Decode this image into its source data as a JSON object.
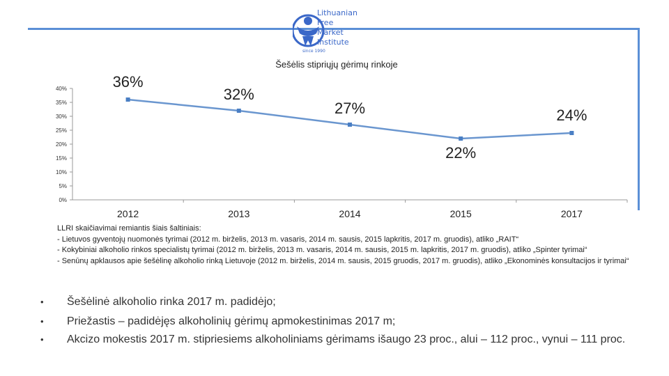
{
  "logo": {
    "lines": [
      "Lithuanian",
      "Free",
      "Market",
      "Institute"
    ],
    "year": "since 1990"
  },
  "colors": {
    "frame": "#5b8fd6",
    "line": "#6a96cf",
    "marker": "#4a7fc4",
    "logo": "#3b68c8"
  },
  "chart_data": {
    "type": "line",
    "title": "Šešėlis stipriųjų gėrimų rinkoje",
    "categories": [
      "2012",
      "2013",
      "2014",
      "2015",
      "2017"
    ],
    "values": [
      36,
      32,
      27,
      22,
      24
    ],
    "data_labels": [
      "36%",
      "32%",
      "27%",
      "22%",
      "24%"
    ],
    "y_ticks": [
      "0%",
      "5%",
      "10%",
      "15%",
      "20%",
      "25%",
      "30%",
      "35%",
      "40%"
    ],
    "ylim": [
      0,
      40
    ],
    "xlabel": "",
    "ylabel": "",
    "grid": false,
    "legend": "none"
  },
  "sources": {
    "lines": [
      "LLRI skaičiavimai remiantis šiais šaltiniais:",
      "- Lietuvos gyventojų nuomonės tyrimai (2012 m. birželis, 2013 m. vasaris, 2014 m. sausis, 2015 lapkritis, 2017 m. gruodis), atliko „RAIT“",
      "- Kokybiniai alkoholio rinkos specialistų tyrimai (2012 m. birželis, 2013 m. vasaris, 2014 m. sausis, 2015 m. lapkritis, 2017 m. gruodis), atliko „Spinter tyrimai“",
      "- Senūnų apklausos apie šešėlinę alkoholio rinką Lietuvoje (2012 m. birželis, 2014 m. sausis, 2015 gruodis, 2017 m. gruodis), atliko „Ekonominės konsultacijos ir tyrimai“"
    ]
  },
  "bullets": [
    "Šešėlinė alkoholio rinka 2017 m. padidėjo;",
    "Priežastis – padidėjęs alkoholinių gėrimų apmokestinimas 2017 m;",
    "Akcizo mokestis 2017 m. stipriesiems alkoholiniams gėrimams išaugo 23 proc., alui – 112 proc., vynui – 111 proc."
  ]
}
